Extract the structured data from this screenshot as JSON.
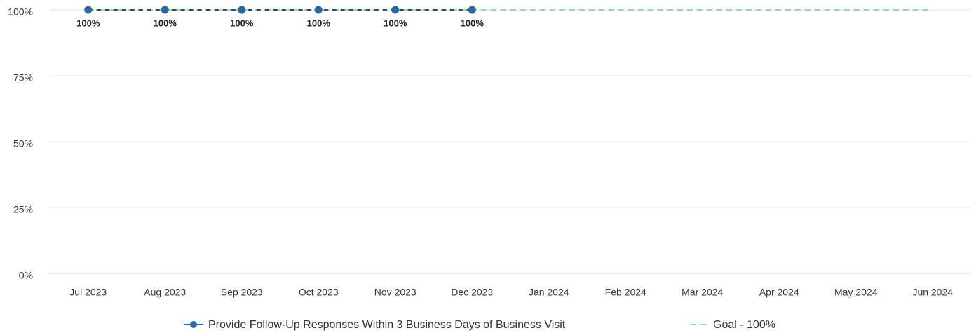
{
  "chart_data": {
    "type": "line",
    "categories": [
      "Jul 2023",
      "Aug 2023",
      "Sep 2023",
      "Oct 2023",
      "Nov 2023",
      "Dec 2023",
      "Jan 2024",
      "Feb 2024",
      "Mar 2024",
      "Apr 2024",
      "May 2024",
      "Jun 2024"
    ],
    "series": [
      {
        "name": "Provide Follow-Up Responses Within 3 Business Days of Business Visit",
        "color": "#2a6a9e",
        "values": [
          100,
          100,
          100,
          100,
          100,
          100,
          null,
          null,
          null,
          null,
          null,
          null
        ],
        "value_labels": [
          "100%",
          "100%",
          "100%",
          "100%",
          "100%",
          "100%",
          null,
          null,
          null,
          null,
          null,
          null
        ]
      },
      {
        "name": "Goal - 100%",
        "color": "#90dcb0",
        "dashed": true,
        "values": [
          100,
          100,
          100,
          100,
          100,
          100,
          100,
          100,
          100,
          100,
          100,
          100
        ]
      }
    ],
    "ylim": [
      0,
      100
    ],
    "yticks": [
      {
        "value": 0,
        "label": "0%"
      },
      {
        "value": 25,
        "label": "25%"
      },
      {
        "value": 50,
        "label": "50%"
      },
      {
        "value": 75,
        "label": "75%"
      },
      {
        "value": 100,
        "label": "100%"
      }
    ],
    "grid": true,
    "legend": "bottom"
  }
}
